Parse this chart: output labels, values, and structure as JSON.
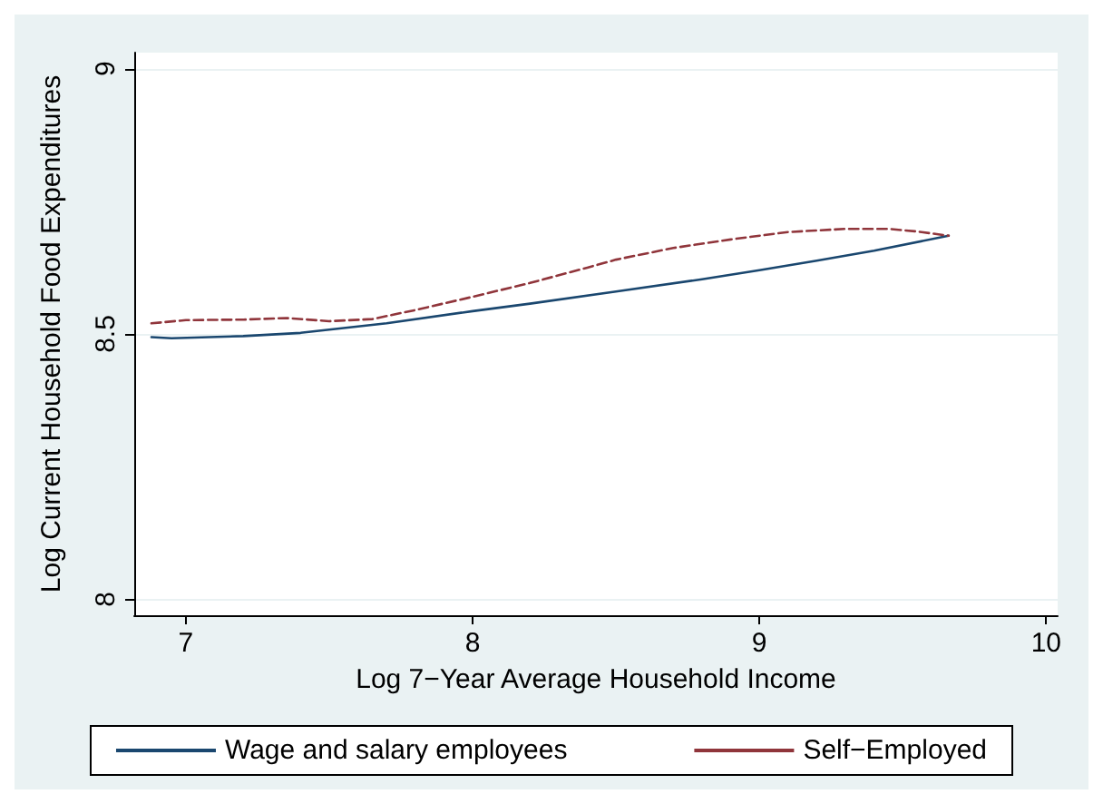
{
  "chart_data": {
    "type": "line",
    "xlabel": "Log 7−Year Average Household Income",
    "ylabel": "Log Current Household Food Expenditures",
    "xlim": [
      6.82,
      10.04
    ],
    "xticks": [
      7,
      8,
      9,
      10
    ],
    "ylim": [
      7.97,
      9.03
    ],
    "yticks": [
      8,
      8.5,
      9
    ],
    "grid": "y",
    "legend": "bottom",
    "marker": "none",
    "series": [
      {
        "name": "Wage and salary employees",
        "color": "#1a476f",
        "line_style": "solid",
        "x": [
          6.88,
          6.95,
          7.2,
          7.4,
          7.7,
          8.0,
          8.2,
          8.5,
          8.8,
          9.0,
          9.2,
          9.4,
          9.66
        ],
        "values": [
          8.494,
          8.492,
          8.496,
          8.502,
          8.52,
          8.543,
          8.557,
          8.58,
          8.603,
          8.62,
          8.638,
          8.657,
          8.685
        ]
      },
      {
        "name": "Self−Employed",
        "color": "#90353b",
        "line_style": "dashed",
        "x": [
          6.88,
          7.0,
          7.2,
          7.35,
          7.5,
          7.65,
          7.8,
          8.0,
          8.2,
          8.4,
          8.5,
          8.7,
          8.9,
          9.1,
          9.3,
          9.45,
          9.55,
          9.66
        ],
        "values": [
          8.52,
          8.526,
          8.527,
          8.53,
          8.524,
          8.528,
          8.545,
          8.57,
          8.596,
          8.625,
          8.64,
          8.662,
          8.678,
          8.692,
          8.698,
          8.698,
          8.693,
          8.685
        ]
      }
    ]
  }
}
